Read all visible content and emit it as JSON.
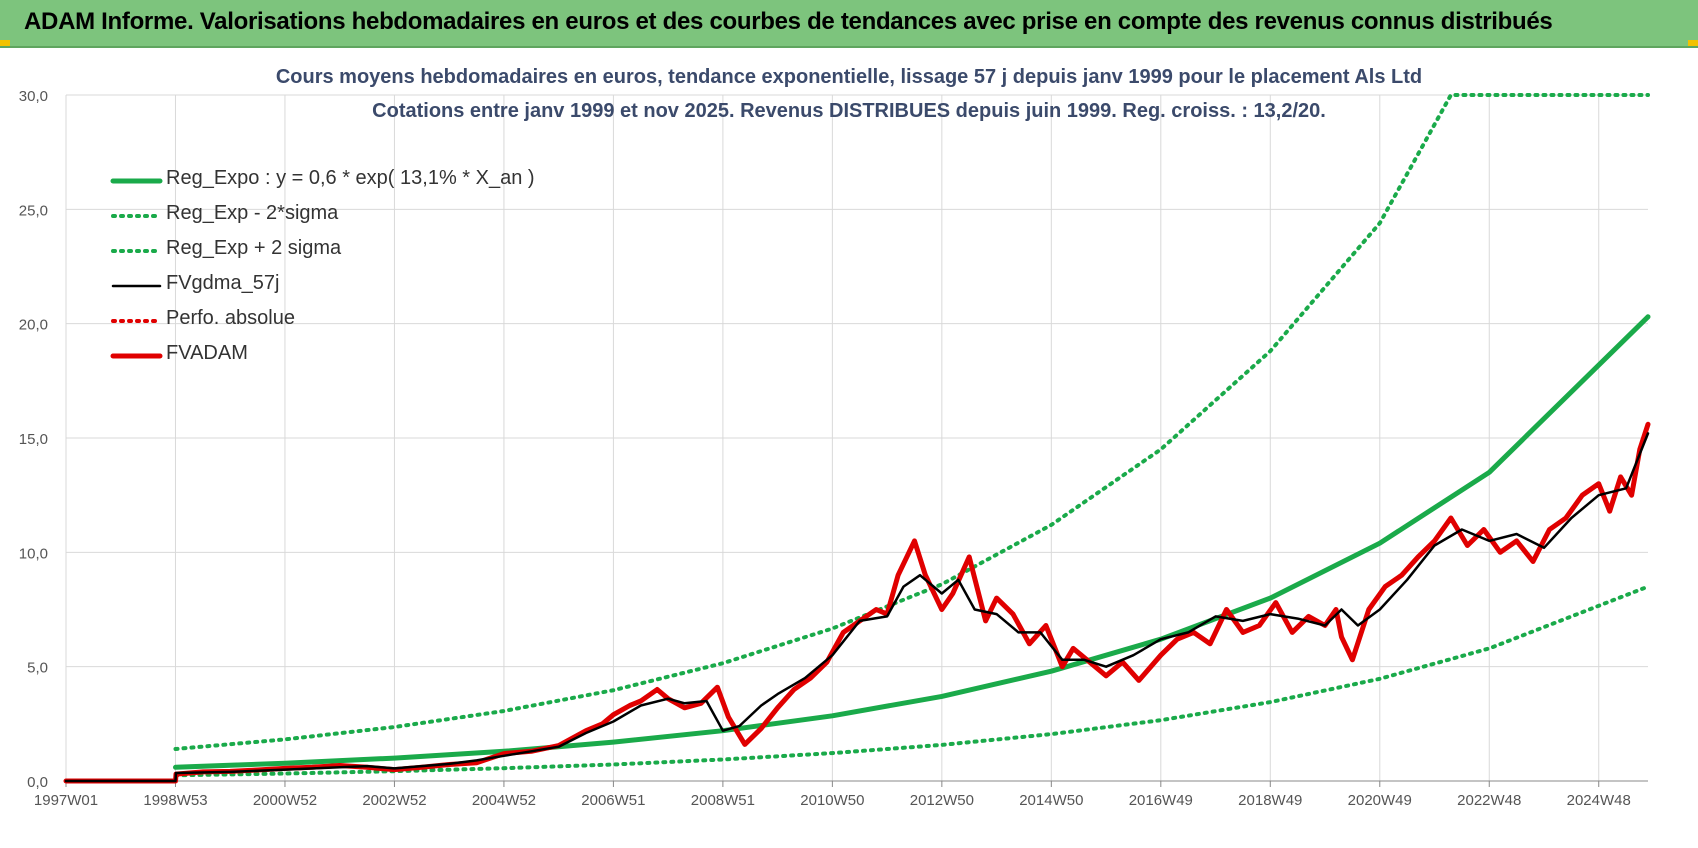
{
  "header": {
    "title": "ADAM Informe. Valorisations hebdomadaires en euros et des courbes de tendances avec prise en compte des revenus connus distribués"
  },
  "chart_data": {
    "type": "line",
    "title": "Cours moyens hebdomadaires en euros, tendance exponentielle, lissage 57 j depuis janv 1999  pour le placement Als Ltd",
    "subtitle": "Cotations entre janv 1999 et nov 2025. Revenus DISTRIBUES depuis juin 1999. Reg. croiss. : 13,2/20.",
    "xlabel": "",
    "ylabel": "",
    "ylim": [
      0,
      30
    ],
    "xlim": [
      1997.0,
      2025.9
    ],
    "y_ticks": [
      "0,0",
      "5,0",
      "10,0",
      "15,0",
      "20,0",
      "25,0",
      "30,0"
    ],
    "x_ticks": [
      {
        "label": "1997W01",
        "x": 1997.0
      },
      {
        "label": "1998W53",
        "x": 1999.0
      },
      {
        "label": "2000W52",
        "x": 2001.0
      },
      {
        "label": "2002W52",
        "x": 2003.0
      },
      {
        "label": "2004W52",
        "x": 2005.0
      },
      {
        "label": "2006W51",
        "x": 2007.0
      },
      {
        "label": "2008W51",
        "x": 2009.0
      },
      {
        "label": "2010W50",
        "x": 2011.0
      },
      {
        "label": "2012W50",
        "x": 2013.0
      },
      {
        "label": "2014W50",
        "x": 2015.0
      },
      {
        "label": "2016W49",
        "x": 2017.0
      },
      {
        "label": "2018W49",
        "x": 2019.0
      },
      {
        "label": "2020W49",
        "x": 2021.0
      },
      {
        "label": "2022W48",
        "x": 2023.0
      },
      {
        "label": "2024W48",
        "x": 2025.0
      }
    ],
    "grid": true,
    "legend_position": "top-left",
    "series": [
      {
        "name": "Reg_Expo : y = 0,6 * exp( 13,1% *  X_an )",
        "color": "#1aaa4a",
        "style": "solid-thick",
        "x": [
          1999.0,
          2001.0,
          2003.0,
          2005.0,
          2007.0,
          2009.0,
          2011.0,
          2013.0,
          2015.0,
          2017.0,
          2019.0,
          2021.0,
          2023.0,
          2025.9
        ],
        "y": [
          0.6,
          0.78,
          1.0,
          1.3,
          1.7,
          2.2,
          2.85,
          3.7,
          4.8,
          6.2,
          8.0,
          10.4,
          13.5,
          20.3
        ]
      },
      {
        "name": "Reg_Exp - 2*sigma",
        "color": "#1aaa4a",
        "style": "dotted",
        "x": [
          1999.0,
          2001.0,
          2003.0,
          2005.0,
          2007.0,
          2009.0,
          2011.0,
          2013.0,
          2015.0,
          2017.0,
          2019.0,
          2021.0,
          2023.0,
          2025.9
        ],
        "y": [
          0.25,
          0.33,
          0.43,
          0.56,
          0.72,
          0.94,
          1.22,
          1.58,
          2.05,
          2.66,
          3.45,
          4.47,
          5.8,
          8.5
        ]
      },
      {
        "name": "Reg_Exp + 2 sigma",
        "color": "#1aaa4a",
        "style": "dotted",
        "x": [
          1999.0,
          2001.0,
          2003.0,
          2005.0,
          2007.0,
          2009.0,
          2011.0,
          2013.0,
          2015.0,
          2017.0,
          2019.0,
          2021.0,
          2022.3,
          2025.9
        ],
        "y": [
          1.4,
          1.82,
          2.36,
          3.06,
          3.97,
          5.15,
          6.67,
          8.6,
          11.2,
          14.5,
          18.8,
          24.4,
          30.0,
          30.0
        ]
      },
      {
        "name": "FVgdma_57j",
        "color": "#000000",
        "style": "solid",
        "x": [
          1997.0,
          1999.0,
          1999.01,
          2000.0,
          2001.0,
          2002.0,
          2002.5,
          2003.0,
          2004.0,
          2004.5,
          2005.0,
          2005.5,
          2006.0,
          2006.5,
          2007.0,
          2007.5,
          2008.0,
          2008.3,
          2008.7,
          2009.0,
          2009.3,
          2009.7,
          2010.0,
          2010.5,
          2011.0,
          2011.5,
          2012.0,
          2012.3,
          2012.6,
          2013.0,
          2013.3,
          2013.6,
          2014.0,
          2014.4,
          2014.8,
          2015.2,
          2015.6,
          2016.0,
          2016.5,
          2017.0,
          2017.5,
          2018.0,
          2018.5,
          2019.0,
          2019.5,
          2020.0,
          2020.3,
          2020.6,
          2021.0,
          2021.5,
          2022.0,
          2022.5,
          2023.0,
          2023.5,
          2024.0,
          2024.5,
          2025.0,
          2025.5,
          2025.9
        ],
        "y": [
          0.0,
          0.0,
          0.35,
          0.4,
          0.5,
          0.6,
          0.65,
          0.55,
          0.75,
          0.9,
          1.1,
          1.3,
          1.5,
          2.1,
          2.6,
          3.3,
          3.6,
          3.4,
          3.5,
          2.2,
          2.4,
          3.3,
          3.8,
          4.5,
          5.5,
          7.0,
          7.2,
          8.5,
          9.0,
          8.2,
          8.8,
          7.5,
          7.3,
          6.5,
          6.5,
          5.3,
          5.3,
          5.0,
          5.5,
          6.2,
          6.5,
          7.2,
          7.0,
          7.3,
          7.1,
          6.8,
          7.5,
          6.8,
          7.5,
          8.8,
          10.3,
          11.0,
          10.5,
          10.8,
          10.2,
          11.5,
          12.5,
          12.8,
          15.2
        ]
      },
      {
        "name": "Perfo. absolue",
        "color": "#e00000",
        "style": "dotted",
        "x": [],
        "y": []
      },
      {
        "name": "FVADAM",
        "color": "#e00000",
        "style": "solid-thick",
        "x": [
          1997.0,
          1999.0,
          1999.01,
          1999.5,
          2000.0,
          2000.5,
          2001.0,
          2001.5,
          2002.0,
          2002.5,
          2003.0,
          2003.5,
          2004.0,
          2004.5,
          2005.0,
          2005.5,
          2006.0,
          2006.5,
          2006.8,
          2007.0,
          2007.3,
          2007.5,
          2007.8,
          2008.0,
          2008.3,
          2008.6,
          2008.9,
          2009.1,
          2009.4,
          2009.7,
          2010.0,
          2010.3,
          2010.6,
          2010.9,
          2011.2,
          2011.5,
          2011.8,
          2012.0,
          2012.2,
          2012.5,
          2012.7,
          2013.0,
          2013.2,
          2013.5,
          2013.8,
          2014.0,
          2014.3,
          2014.6,
          2014.9,
          2015.2,
          2015.4,
          2015.7,
          2016.0,
          2016.3,
          2016.6,
          2017.0,
          2017.3,
          2017.6,
          2017.9,
          2018.2,
          2018.5,
          2018.8,
          2019.1,
          2019.4,
          2019.7,
          2020.0,
          2020.2,
          2020.3,
          2020.5,
          2020.8,
          2021.1,
          2021.4,
          2021.7,
          2022.0,
          2022.3,
          2022.6,
          2022.9,
          2023.2,
          2023.5,
          2023.8,
          2024.1,
          2024.4,
          2024.7,
          2025.0,
          2025.2,
          2025.4,
          2025.6,
          2025.75,
          2025.9
        ],
        "y": [
          0.0,
          0.0,
          0.3,
          0.4,
          0.42,
          0.48,
          0.55,
          0.6,
          0.68,
          0.6,
          0.5,
          0.6,
          0.72,
          0.8,
          1.2,
          1.3,
          1.55,
          2.2,
          2.5,
          2.9,
          3.3,
          3.5,
          4.0,
          3.6,
          3.2,
          3.4,
          4.1,
          2.8,
          1.6,
          2.3,
          3.2,
          4.0,
          4.5,
          5.2,
          6.5,
          7.0,
          7.5,
          7.3,
          9.0,
          10.5,
          9.0,
          7.5,
          8.2,
          9.8,
          7.0,
          8.0,
          7.3,
          6.0,
          6.8,
          5.0,
          5.8,
          5.2,
          4.6,
          5.2,
          4.4,
          5.5,
          6.2,
          6.5,
          6.0,
          7.5,
          6.5,
          6.8,
          7.8,
          6.5,
          7.2,
          6.8,
          7.5,
          6.3,
          5.3,
          7.5,
          8.5,
          9.0,
          9.8,
          10.5,
          11.5,
          10.3,
          11.0,
          10.0,
          10.5,
          9.6,
          11.0,
          11.5,
          12.5,
          13.0,
          11.8,
          13.3,
          12.5,
          14.5,
          15.6
        ]
      }
    ]
  }
}
